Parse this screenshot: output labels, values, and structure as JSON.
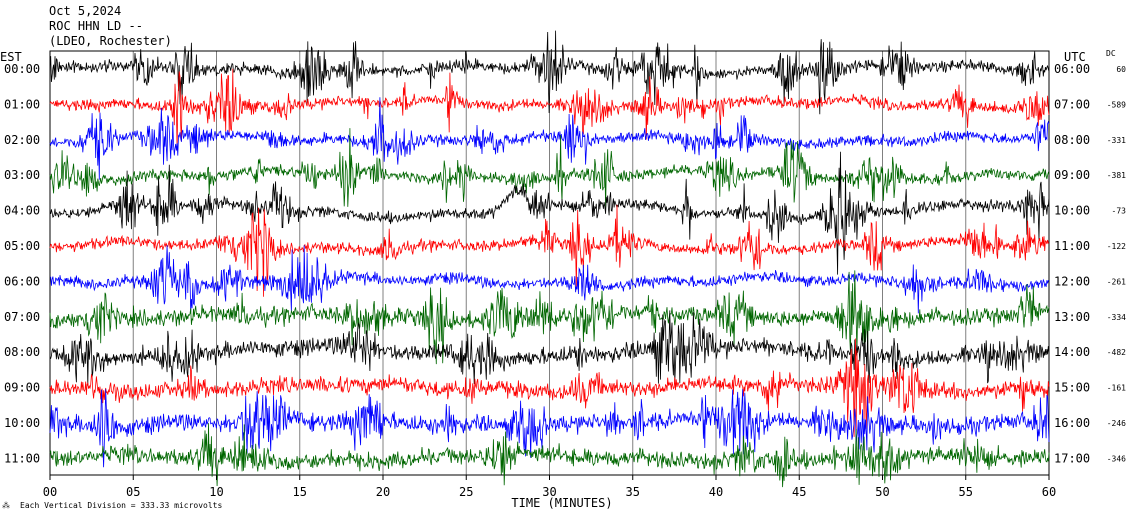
{
  "header": {
    "date": "Oct 5,2024",
    "station": "ROC HHN LD --",
    "network": "(LDEO, Rochester)"
  },
  "left_axis_label": "EST",
  "right_axis_label": "UTC",
  "dc_label": "DC",
  "footer_note": "Each Vertical Division =  333.33 microvolts",
  "chart_data": {
    "type": "helicorder",
    "xlabel": "TIME (MINUTES)",
    "xlim": [
      0,
      60
    ],
    "x_ticks": [
      "00",
      "05",
      "10",
      "15",
      "20",
      "25",
      "30",
      "35",
      "40",
      "45",
      "50",
      "55",
      "60"
    ],
    "colors": [
      "#000000",
      "#ff0000",
      "#0000ff",
      "#006600"
    ],
    "rows": [
      {
        "est": "00:00",
        "utc": "06:00",
        "dc": "60",
        "color": "#000000"
      },
      {
        "est": "01:00",
        "utc": "07:00",
        "dc": "-589",
        "color": "#ff0000"
      },
      {
        "est": "02:00",
        "utc": "08:00",
        "dc": "-331",
        "color": "#0000ff"
      },
      {
        "est": "03:00",
        "utc": "09:00",
        "dc": "-381",
        "color": "#006600"
      },
      {
        "est": "04:00",
        "utc": "10:00",
        "dc": "-73",
        "color": "#000000"
      },
      {
        "est": "05:00",
        "utc": "11:00",
        "dc": "-122",
        "color": "#ff0000"
      },
      {
        "est": "06:00",
        "utc": "12:00",
        "dc": "-261",
        "color": "#0000ff"
      },
      {
        "est": "07:00",
        "utc": "13:00",
        "dc": "-334",
        "color": "#006600"
      },
      {
        "est": "08:00",
        "utc": "14:00",
        "dc": "-482",
        "color": "#000000"
      },
      {
        "est": "09:00",
        "utc": "15:00",
        "dc": "-161",
        "color": "#ff0000"
      },
      {
        "est": "10:00",
        "utc": "16:00",
        "dc": "-246",
        "color": "#0000ff"
      },
      {
        "est": "11:00",
        "utc": "17:00",
        "dc": "-346",
        "color": "#006600"
      }
    ],
    "grid": true
  }
}
